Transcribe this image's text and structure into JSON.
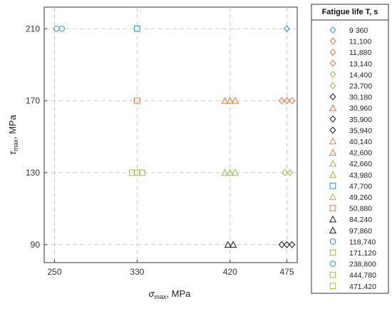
{
  "chart_data": {
    "type": "scatter",
    "xlabel": {
      "main": "σ",
      "sub": "max",
      "rest": ", MPa"
    },
    "ylabel": {
      "main": "τ",
      "sub": "max",
      "rest": ", MPa"
    },
    "xlim": [
      240,
      485
    ],
    "ylim": [
      80,
      222
    ],
    "xticks": [
      250,
      330,
      420,
      475
    ],
    "yticks": [
      90,
      130,
      170,
      210
    ],
    "grid": true,
    "legend_title": "Fatigue life T, s",
    "legend_position": "right outside",
    "colors": {
      "blue": "#2f93c9",
      "orange": "#e8743b",
      "green": "#8cc63e",
      "black": "#1a1a1a",
      "olive": "#a3b837"
    },
    "series": [
      {
        "name": "9 360",
        "marker": "diamond",
        "color": "blue",
        "points": [
          [
            475,
            210
          ]
        ]
      },
      {
        "name": "11,100",
        "marker": "diamond",
        "color": "orange",
        "points": [
          [
            470,
            170
          ]
        ]
      },
      {
        "name": "11,880",
        "marker": "diamond",
        "color": "orange",
        "points": [
          [
            475,
            170
          ]
        ]
      },
      {
        "name": "13,140",
        "marker": "diamond",
        "color": "orange",
        "points": [
          [
            480,
            170
          ]
        ]
      },
      {
        "name": "14,400",
        "marker": "diamond",
        "color": "green",
        "points": [
          [
            473,
            130
          ]
        ]
      },
      {
        "name": "23,700",
        "marker": "diamond",
        "color": "green",
        "points": [
          [
            478,
            130
          ]
        ]
      },
      {
        "name": "30,180",
        "marker": "diamond",
        "color": "black",
        "points": [
          [
            470,
            90
          ]
        ]
      },
      {
        "name": "30,960",
        "marker": "triangle",
        "color": "orange",
        "points": [
          [
            415,
            170
          ]
        ]
      },
      {
        "name": "35,900",
        "marker": "diamond",
        "color": "black",
        "points": [
          [
            475,
            90
          ]
        ]
      },
      {
        "name": "35,940",
        "marker": "diamond",
        "color": "black",
        "points": [
          [
            480,
            90
          ]
        ]
      },
      {
        "name": "40,140",
        "marker": "triangle",
        "color": "orange",
        "points": [
          [
            420,
            170
          ]
        ]
      },
      {
        "name": "42,600",
        "marker": "triangle",
        "color": "orange",
        "points": [
          [
            425,
            170
          ]
        ]
      },
      {
        "name": "42,660",
        "marker": "triangle",
        "color": "green",
        "points": [
          [
            415,
            130
          ]
        ]
      },
      {
        "name": "43,980",
        "marker": "triangle",
        "color": "green",
        "points": [
          [
            420,
            130
          ]
        ]
      },
      {
        "name": "47,700",
        "marker": "square",
        "color": "blue",
        "points": [
          [
            330,
            210
          ]
        ]
      },
      {
        "name": "49,260",
        "marker": "triangle",
        "color": "green",
        "points": [
          [
            425,
            130
          ]
        ]
      },
      {
        "name": "50,880",
        "marker": "square",
        "color": "orange",
        "points": [
          [
            330,
            170
          ]
        ]
      },
      {
        "name": "84,240",
        "marker": "triangle",
        "color": "black",
        "points": [
          [
            418,
            90
          ]
        ]
      },
      {
        "name": "97,860",
        "marker": "triangle",
        "color": "black",
        "points": [
          [
            423,
            90
          ]
        ]
      },
      {
        "name": "118,740",
        "marker": "circle",
        "color": "blue",
        "points": [
          [
            252,
            210
          ]
        ]
      },
      {
        "name": "171,120",
        "marker": "square",
        "color": "olive",
        "points": [
          [
            325,
            130
          ]
        ]
      },
      {
        "name": "238,800",
        "marker": "circle",
        "color": "blue",
        "points": [
          [
            257,
            210
          ]
        ]
      },
      {
        "name": "444,780",
        "marker": "square",
        "color": "olive",
        "points": [
          [
            330,
            130
          ]
        ]
      },
      {
        "name": "471,420",
        "marker": "square",
        "color": "olive",
        "points": [
          [
            335,
            130
          ]
        ]
      }
    ]
  }
}
